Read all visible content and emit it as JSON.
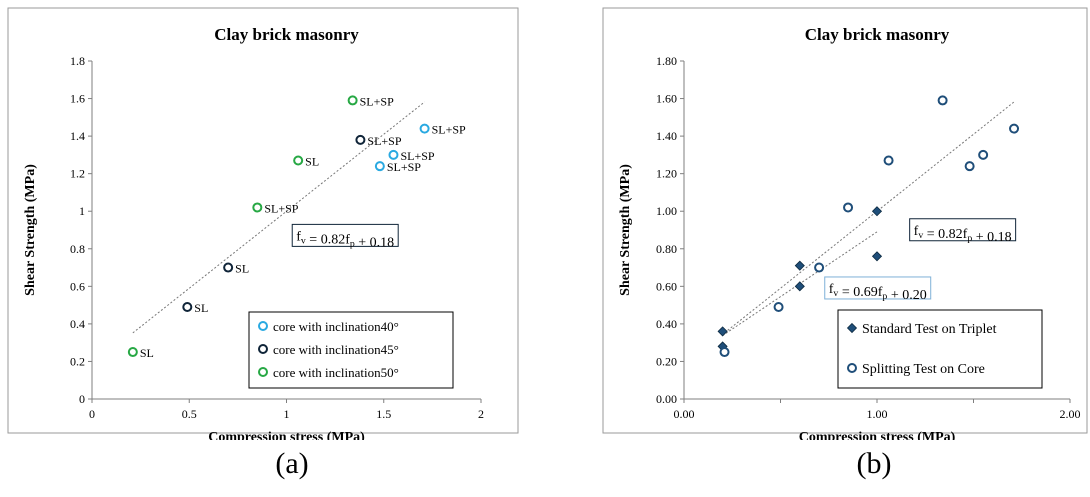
{
  "chart_data": [
    {
      "panel_label": "(a)",
      "type": "scatter",
      "title": "Clay brick masonry",
      "xlabel": "Compression stress (MPa)",
      "ylabel": "Shear Strength (MPa)",
      "xlim": [
        0,
        2
      ],
      "ylim": [
        0,
        1.8
      ],
      "xticks": [
        0,
        0.5,
        1,
        1.5,
        2
      ],
      "xtick_labels": [
        "0",
        "0.5",
        "1",
        "1.5",
        "2"
      ],
      "yticks": [
        0,
        0.2,
        0.4,
        0.6,
        0.8,
        1,
        1.2,
        1.4,
        1.6,
        1.8
      ],
      "ytick_labels": [
        "0",
        "0.2",
        "0.4",
        "0.6",
        "0.8",
        "1",
        "1.2",
        "1.4",
        "1.6",
        "1.8"
      ],
      "grid": false,
      "legend_position": "bottom-right",
      "series": [
        {
          "name": "core with inclination40°",
          "color": "#29a9e1",
          "marker": "open-circle",
          "points": [
            {
              "x": 1.71,
              "y": 1.44,
              "label": "SL+SP"
            },
            {
              "x": 1.55,
              "y": 1.3,
              "label": "SL+SP"
            },
            {
              "x": 1.48,
              "y": 1.24,
              "label": "SL+SP"
            }
          ]
        },
        {
          "name": "core with inclination45°",
          "color": "#0f2438",
          "marker": "open-circle",
          "points": [
            {
              "x": 1.38,
              "y": 1.38,
              "label": "SL+SP"
            },
            {
              "x": 0.7,
              "y": 0.7,
              "label": "SL"
            },
            {
              "x": 0.49,
              "y": 0.49,
              "label": "SL"
            }
          ]
        },
        {
          "name": "core with inclination50°",
          "color": "#27a844",
          "marker": "open-circle",
          "points": [
            {
              "x": 1.34,
              "y": 1.59,
              "label": "SL+SP"
            },
            {
              "x": 1.06,
              "y": 1.27,
              "label": "SL"
            },
            {
              "x": 0.85,
              "y": 1.02,
              "label": "SL+SP"
            },
            {
              "x": 0.21,
              "y": 0.25,
              "label": "SL"
            }
          ]
        }
      ],
      "trendlines": [
        {
          "x": [
            0.21,
            1.71
          ],
          "y": [
            0.352,
            1.582
          ],
          "style": "dotted",
          "color": "#777777",
          "equation": "fv = 0.82fp + 0.18",
          "eq_at": [
            1.05,
            0.85
          ]
        }
      ]
    },
    {
      "panel_label": "(b)",
      "type": "scatter",
      "title": "Clay brick masonry",
      "xlabel": "Compression stress (MPa)",
      "ylabel": "Shear Strength (MPa)",
      "xlim": [
        0,
        2
      ],
      "ylim": [
        0,
        1.8
      ],
      "xticks": [
        0,
        1,
        2
      ],
      "xtick_labels": [
        "0.00",
        "1.00",
        "2.00"
      ],
      "minor_xticks": [
        0.5,
        1.5
      ],
      "yticks": [
        0,
        0.2,
        0.4,
        0.6,
        0.8,
        1,
        1.2,
        1.4,
        1.6,
        1.8
      ],
      "ytick_labels": [
        "0.00",
        "0.20",
        "0.40",
        "0.60",
        "0.80",
        "1.00",
        "1.20",
        "1.40",
        "1.60",
        "1.80"
      ],
      "grid": false,
      "legend_position": "bottom-right",
      "series": [
        {
          "name": "Standard Test on Triplet",
          "color": "#1f4e79",
          "marker": "filled-diamond",
          "points": [
            {
              "x": 0.2,
              "y": 0.36
            },
            {
              "x": 0.2,
              "y": 0.28
            },
            {
              "x": 0.6,
              "y": 0.71
            },
            {
              "x": 0.6,
              "y": 0.6
            },
            {
              "x": 1.0,
              "y": 1.0
            },
            {
              "x": 1.0,
              "y": 0.76
            }
          ]
        },
        {
          "name": "Splitting Test on Core",
          "color": "#1f4e79",
          "marker": "open-circle",
          "points": [
            {
              "x": 0.21,
              "y": 0.25
            },
            {
              "x": 0.49,
              "y": 0.49
            },
            {
              "x": 0.7,
              "y": 0.7
            },
            {
              "x": 0.85,
              "y": 1.02
            },
            {
              "x": 1.06,
              "y": 1.27
            },
            {
              "x": 1.34,
              "y": 1.59
            },
            {
              "x": 1.48,
              "y": 1.24
            },
            {
              "x": 1.55,
              "y": 1.3
            },
            {
              "x": 1.71,
              "y": 1.44
            }
          ]
        }
      ],
      "trendlines": [
        {
          "x": [
            0.21,
            1.71
          ],
          "y": [
            0.352,
            1.582
          ],
          "style": "dotted",
          "color": "#777777",
          "equation": "fv = 0.82fp + 0.18",
          "eq_at": [
            1.19,
            0.88
          ]
        },
        {
          "x": [
            0.2,
            1.0
          ],
          "y": [
            0.338,
            0.89
          ],
          "style": "dotted",
          "color": "#777777",
          "equation": "fv = 0.69fp + 0.20",
          "eq_at": [
            0.75,
            0.57
          ]
        }
      ]
    }
  ]
}
